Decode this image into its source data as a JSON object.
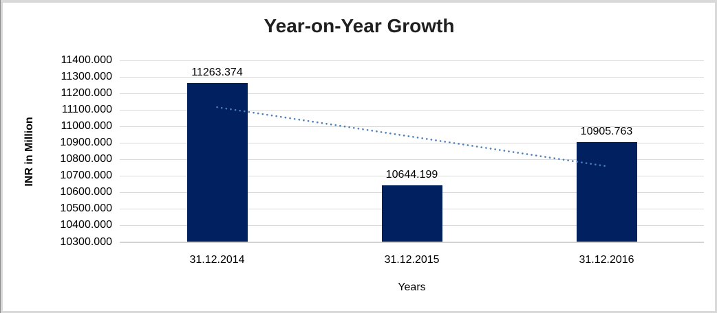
{
  "window": {
    "frame_border_color": "#d9d9d9",
    "frame_edge_color": "#8c8c8c",
    "background_color": "#ffffff"
  },
  "chart_data": {
    "type": "bar",
    "title": "Year-on-Year Growth",
    "xlabel": "Years",
    "ylabel": "INR in Million",
    "categories": [
      "31.12.2014",
      "31.12.2015",
      "31.12.2016"
    ],
    "values": [
      11263.374,
      10644.199,
      10905.763
    ],
    "data_labels": [
      "11263.374",
      "10644.199",
      "10905.763"
    ],
    "y_tick_labels": [
      "11400.000",
      "11300.000",
      "11200.000",
      "11100.000",
      "11000.000",
      "10900.000",
      "10800.000",
      "10700.000",
      "10600.000",
      "10500.000",
      "10400.000",
      "10300.000"
    ],
    "ylim": [
      10300,
      11400
    ],
    "y_tick_step": 100,
    "grid": true,
    "legend": "none",
    "bar_color": "#002060",
    "gridline_color": "#d9d9d9",
    "text_color": "#000000",
    "title_color": "#1f1f1f",
    "trendline": {
      "kind": "linear",
      "style": "dotted",
      "color": "#4a7ebb"
    }
  }
}
